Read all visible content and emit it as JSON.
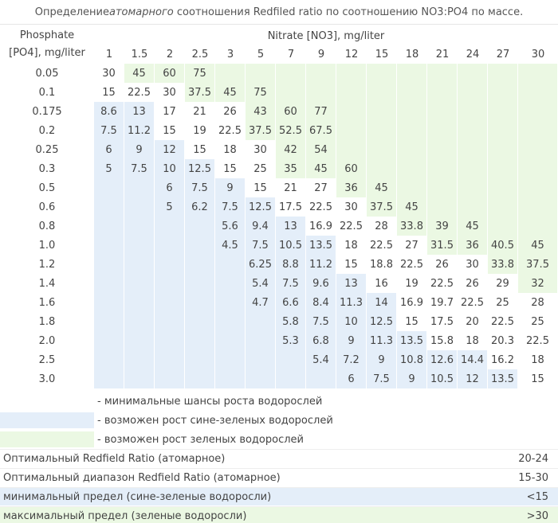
{
  "title_parts": [
    "Определение ",
    "атомарного",
    " соотношения Redfiled ratio по соотношению NO3:PO4 по массе."
  ],
  "colors": {
    "b": "#e4eef9",
    "g": "#ebf8e3",
    "w": "#ffffff"
  },
  "phosphate_header": [
    "Phosphate",
    "[PO4], mg/liter"
  ],
  "nitrate_header": "Nitrate [NO3], mg/liter",
  "columns": [
    "1",
    "1.5",
    "2",
    "2.5",
    "3",
    "5",
    "7",
    "9",
    "12",
    "15",
    "18",
    "21",
    "24",
    "27",
    "30"
  ],
  "rows": [
    {
      "phosphate": "0.05",
      "values": [
        "30",
        "45",
        "60",
        "75",
        null,
        null,
        null,
        null,
        null,
        null,
        null,
        null,
        null,
        null,
        null
      ],
      "shade": "wgggggggggggggg"
    },
    {
      "phosphate": "0.1",
      "values": [
        "15",
        "22.5",
        "30",
        "37.5",
        "45",
        "75",
        null,
        null,
        null,
        null,
        null,
        null,
        null,
        null,
        null
      ],
      "shade": "wwwgggggggggggg"
    },
    {
      "phosphate": "0.175",
      "values": [
        "8.6",
        "13",
        "17",
        "21",
        "26",
        "43",
        "60",
        "77",
        null,
        null,
        null,
        null,
        null,
        null,
        null
      ],
      "shade": "bbwwwgggggggggg"
    },
    {
      "phosphate": "0.2",
      "values": [
        "7.5",
        "11.2",
        "15",
        "19",
        "22.5",
        "37.5",
        "52.5",
        "67.5",
        null,
        null,
        null,
        null,
        null,
        null,
        null
      ],
      "shade": "bbwwwgggggggggg"
    },
    {
      "phosphate": "0.25",
      "values": [
        "6",
        "9",
        "12",
        "15",
        "18",
        "30",
        "42",
        "54",
        null,
        null,
        null,
        null,
        null,
        null,
        null
      ],
      "shade": "bbbwwwggggggggg"
    },
    {
      "phosphate": "0.3",
      "values": [
        "5",
        "7.5",
        "10",
        "12.5",
        "15",
        "25",
        "35",
        "45",
        "60",
        null,
        null,
        null,
        null,
        null,
        null
      ],
      "shade": "bbbbwwggggggggg"
    },
    {
      "phosphate": "0.5",
      "values": [
        null,
        null,
        "6",
        "7.5",
        "9",
        "15",
        "21",
        "27",
        "36",
        "45",
        null,
        null,
        null,
        null,
        null
      ],
      "shade": "bbbbbwwwggggggg"
    },
    {
      "phosphate": "0.6",
      "values": [
        null,
        null,
        "5",
        "6.2",
        "7.5",
        "12.5",
        "17.5",
        "22.5",
        "30",
        "37.5",
        "45",
        null,
        null,
        null,
        null
      ],
      "shade": "bbbbbbwwwgggggg"
    },
    {
      "phosphate": "0.8",
      "values": [
        null,
        null,
        null,
        null,
        "5.6",
        "9.4",
        "13",
        "16.9",
        "22.5",
        "28",
        "33.8",
        "39",
        "45",
        null,
        null
      ],
      "shade": "bbbbbbbwwwggggg"
    },
    {
      "phosphate": "1.0",
      "values": [
        null,
        null,
        null,
        null,
        "4.5",
        "7.5",
        "10.5",
        "13.5",
        "18",
        "22.5",
        "27",
        "31.5",
        "36",
        "40.5",
        "45"
      ],
      "shade": "bbbbbbbbwwwgggg"
    },
    {
      "phosphate": "1.2",
      "values": [
        null,
        null,
        null,
        null,
        null,
        "6.25",
        "8.8",
        "11.2",
        "15",
        "18.8",
        "22.5",
        "26",
        "30",
        "33.8",
        "37.5"
      ],
      "shade": "bbbbbbbbwwwwwgg"
    },
    {
      "phosphate": "1.4",
      "values": [
        null,
        null,
        null,
        null,
        null,
        "5.4",
        "7.5",
        "9.6",
        "13",
        "16",
        "19",
        "22.5",
        "26",
        "29",
        "32"
      ],
      "shade": "bbbbbbbbbwwwwwg"
    },
    {
      "phosphate": "1.6",
      "values": [
        null,
        null,
        null,
        null,
        null,
        "4.7",
        "6.6",
        "8.4",
        "11.3",
        "14",
        "16.9",
        "19.7",
        "22.5",
        "25",
        "28"
      ],
      "shade": "bbbbbbbbbbwwwww"
    },
    {
      "phosphate": "1.8",
      "values": [
        null,
        null,
        null,
        null,
        null,
        null,
        "5.8",
        "7.5",
        "10",
        "12.5",
        "15",
        "17.5",
        "20",
        "22.5",
        "25"
      ],
      "shade": "bbbbbbbbbbwwwww"
    },
    {
      "phosphate": "2.0",
      "values": [
        null,
        null,
        null,
        null,
        null,
        null,
        "5.3",
        "6.8",
        "9",
        "11.3",
        "13.5",
        "15.8",
        "18",
        "20.3",
        "22.5"
      ],
      "shade": "bbbbbbbbbbbwwww"
    },
    {
      "phosphate": "2.5",
      "values": [
        null,
        null,
        null,
        null,
        null,
        null,
        null,
        "5.4",
        "7.2",
        "9",
        "10.8",
        "12.6",
        "14.4",
        "16.2",
        "18"
      ],
      "shade": "bbbbbbbbbbbbbww"
    },
    {
      "phosphate": "3.0",
      "values": [
        null,
        null,
        null,
        null,
        null,
        null,
        null,
        null,
        "6",
        "7.5",
        "9",
        "10.5",
        "12",
        "13.5",
        "15"
      ],
      "shade": "bbbbbbbbbbbbbbw"
    }
  ],
  "legend": [
    {
      "shade": "w",
      "text": "- минимальные шансы роста водорослей"
    },
    {
      "shade": "b",
      "text": "- возможен рост сине-зеленых водорослей"
    },
    {
      "shade": "g",
      "text": "- возможен рост зеленых водорослей"
    }
  ],
  "summary": [
    {
      "label": "Оптимальный Redfield Ratio (атомарное)",
      "value": "20-24",
      "shade": "w"
    },
    {
      "label": "Оптимальный диапазон Redfield Ratio (атомарное)",
      "value": "15-30",
      "shade": "w"
    },
    {
      "label": "минимальный предел (сине-зеленые водоросли)",
      "value": "<15",
      "shade": "b"
    },
    {
      "label": "максимальный предел (зеленые водоросли)",
      "value": ">30",
      "shade": "g"
    }
  ]
}
